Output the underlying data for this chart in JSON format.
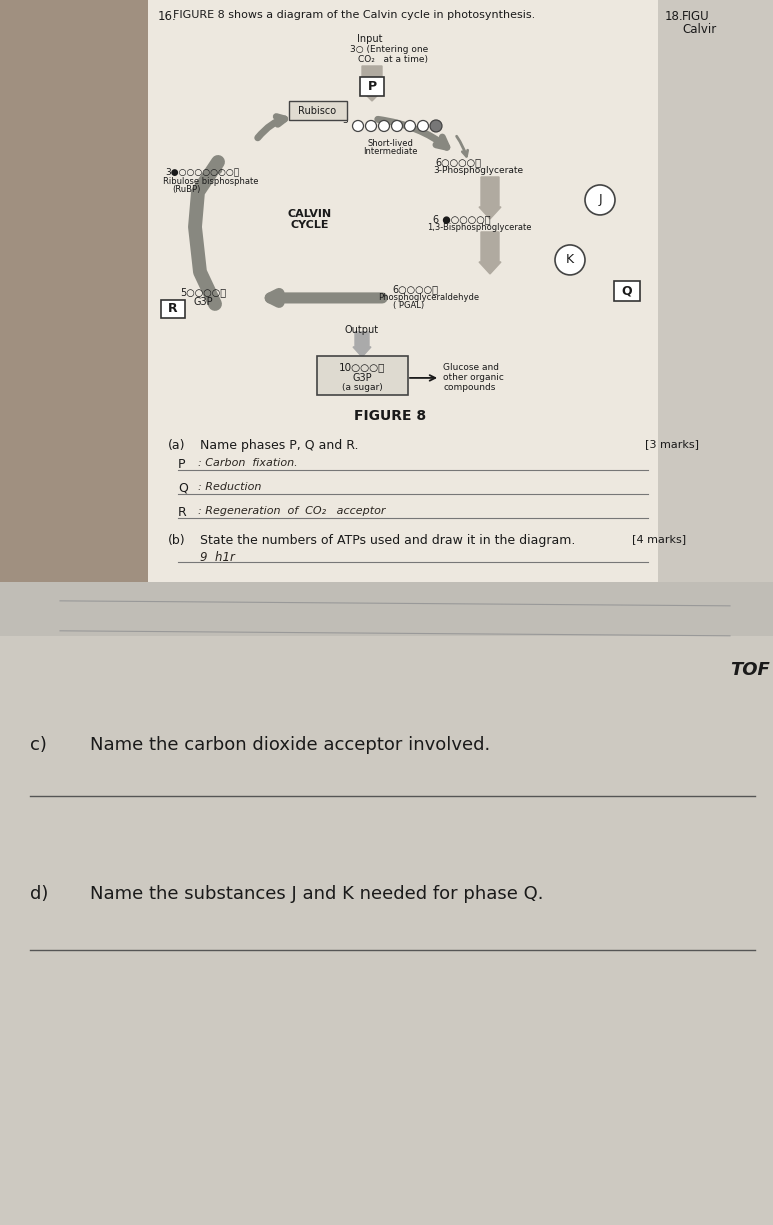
{
  "bg_top": "#b8b0a4",
  "paper_top": "#ede8e0",
  "paper_right": "#dedad2",
  "left_bg": "#9a8e80",
  "bg_bottom": "#cac6be",
  "paper_bottom": "#d8d4cc",
  "text_color": "#1a1a1a",
  "ink_color": "#2a2520",
  "arrow_color": "#888880",
  "title_q16": "16.",
  "title_text": "FIGURE 8 shows a diagram of the Calvin cycle in photosynthesis.",
  "q18_num": "18.",
  "q18_line1": "FIGU",
  "q18_line2": "Calvir",
  "figure_title": "FIGURE 8",
  "input_label": "Input",
  "input_sub1": "3○ (Entering one",
  "input_sub2": "CO₂   at a time)",
  "rubisco_label": "Rubisco",
  "short_lived1": "Short-lived",
  "short_lived2": "Intermediate",
  "three_pg_dots": "6○○○○Ⓟ",
  "three_pg_label": "3-Phosphoglycerate",
  "rubp_dots": "3●○○○○○○○Ⓟ",
  "rubp_label1": "Ribulose bisphosphate",
  "rubp_label2": "(RuBP)",
  "calvin_label1": "CALVIN",
  "calvin_label2": "CYCLE",
  "bpg_dots": "6 ●○○○○Ⓟ",
  "bpg_label": "1,3-Bisphosphoglycerate",
  "g3p_left_dots": "5○○○○Ⓟ",
  "g3p_left_label": "G3P",
  "pgal_dots": "6○○○○Ⓟ",
  "pgal_label1": "Phosphoglyceraldehyde",
  "pgal_label2": "( PGAL)",
  "output_label": "Output",
  "g3p_box_dots": "10○○○Ⓟ",
  "g3p_box_label": "G3P",
  "g3p_box_sub": "(a sugar)",
  "glucose_label1": "Glucose and",
  "glucose_label2": "other organic",
  "glucose_label3": "compounds",
  "part_a_label": "(a)",
  "part_a_text": "Name phases P, Q and R.",
  "part_a_marks": "[3 marks]",
  "p_label": "P",
  "p_answer": ": Carbon  fixation.",
  "q_label": "Q",
  "q_answer": ": Reduction",
  "r_label": "R",
  "r_answer": ": Regeneration  of  CO₂   acceptor",
  "part_b_label": "(b)",
  "part_b_text": "State the numbers of ATPs used and draw it in the diagram.",
  "part_b_marks": "[4 marks]",
  "part_b_answer": "9  h1r",
  "tof_text": "TOF",
  "part_c_label": "c)",
  "part_c_text": "Name the carbon dioxide acceptor involved.",
  "part_d_label": "d)",
  "part_d_text": "Name the substances J and K needed for phase Q."
}
